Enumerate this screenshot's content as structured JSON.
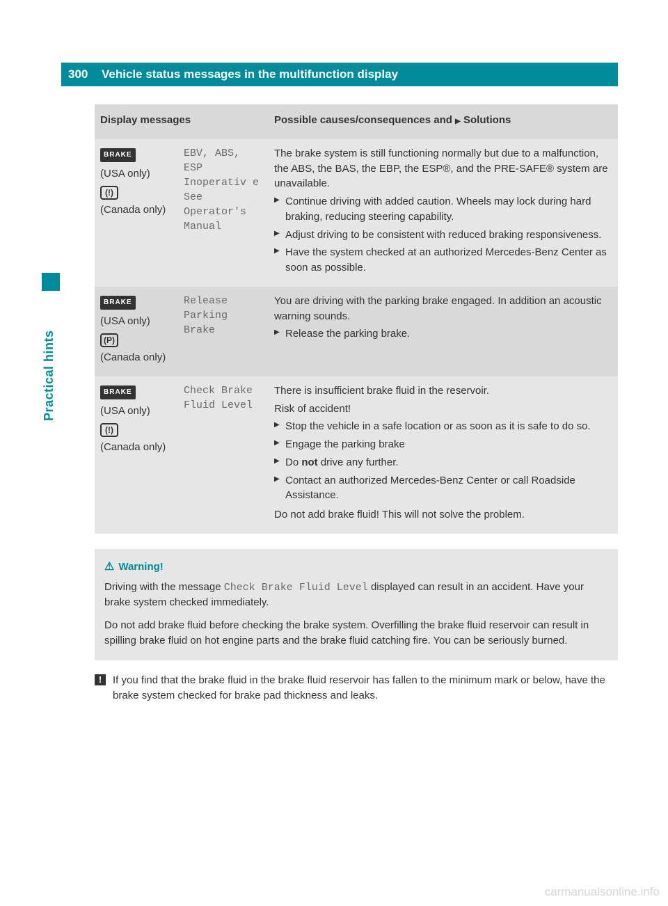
{
  "page_number": "300",
  "page_title": "Vehicle status messages in the multifunction display",
  "side_label": "Practical hints",
  "table": {
    "header": {
      "col_messages": "Display messages",
      "col_solutions_prefix": "Possible causes/consequences and ",
      "col_solutions_suffix": " Solutions",
      "arrow": "▶"
    },
    "rows": [
      {
        "shade": "light",
        "icons": {
          "brake_label": "BRAKE",
          "usa": "(USA only)",
          "canada": "(Canada only)",
          "ind_glyph": "(!)"
        },
        "message": "EBV, ABS, ESP Inoperativ e See Operator's  Manual",
        "cause": "The brake system is still functioning normally but due to a malfunction, the ABS, the BAS, the EBP, the ESP®, and the PRE-SAFE® system are unavailable.",
        "solutions": [
          "Continue driving with added caution. Wheels may lock during hard braking, reducing steering capability.",
          "Adjust driving to be consistent with reduced braking responsiveness.",
          "Have the system checked at an authorized Mercedes-Benz Center as soon as possible."
        ]
      },
      {
        "shade": "dark",
        "icons": {
          "brake_label": "BRAKE",
          "usa": "(USA only)",
          "canada": "(Canada only)",
          "ind_glyph": "(P)"
        },
        "message": "Release Parking Brake",
        "cause": "You are driving with the parking brake engaged. In addition an acoustic warning sounds.",
        "solutions": [
          "Release the parking brake."
        ]
      },
      {
        "shade": "light",
        "icons": {
          "brake_label": "BRAKE",
          "usa": "(USA only)",
          "canada": "(Canada only)",
          "ind_glyph": "(!)"
        },
        "message": "Check Brake Fluid Level",
        "cause": "There is insufficient brake fluid in the reservoir.",
        "risk": "Risk of accident!",
        "solutions": [
          "Stop the vehicle in a safe location or as soon as it is safe to do so.",
          "Engage the parking brake",
          "Do <b>not</b> drive any further.",
          "Contact an authorized Mercedes-Benz Center or call Roadside Assistance."
        ],
        "trailer": "Do not add brake fluid! This will not solve the problem."
      }
    ]
  },
  "warning": {
    "title": "Warning!",
    "triangle": "⚠",
    "para1_pre": "Driving with the message ",
    "para1_mono": "Check Brake Fluid Level",
    "para1_post": " displayed can result in an accident. Have your brake system checked immediately.",
    "para2": "Do not add brake fluid before checking the brake system. Overfilling the brake fluid reservoir can result in spilling brake fluid on hot engine parts and the brake fluid catching fire. You can be seriously burned."
  },
  "note": {
    "icon": "!",
    "text": "If you find that the brake fluid in the brake fluid reservoir has fallen to the minimum mark or below, have the brake system checked for brake pad thickness and leaks."
  },
  "watermark": "carmanualsonline.info",
  "colors": {
    "teal": "#008b9b",
    "light_grey": "#e6e6e6",
    "dark_grey": "#d9d9d9",
    "text": "#333333",
    "mono_text": "#6a6a6a"
  }
}
